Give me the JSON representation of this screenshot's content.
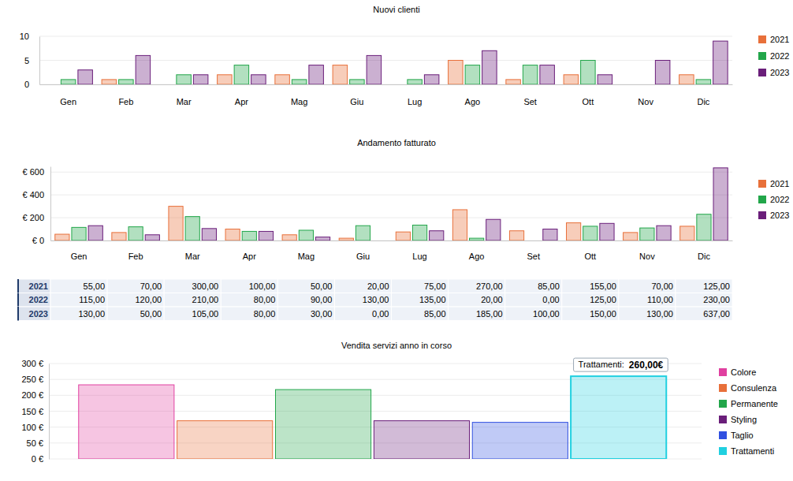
{
  "chart_data": [
    {
      "type": "bar",
      "title": "Nuovi clienti",
      "categories": [
        "Gen",
        "Feb",
        "Mar",
        "Apr",
        "Mag",
        "Giu",
        "Lug",
        "Ago",
        "Set",
        "Ott",
        "Nov",
        "Dic"
      ],
      "series": [
        {
          "name": "2021",
          "color": "#e8703a",
          "values": [
            0,
            1,
            0,
            2,
            2,
            4,
            0,
            5,
            1,
            2,
            0,
            2
          ]
        },
        {
          "name": "2022",
          "color": "#22a64a",
          "values": [
            1,
            1,
            2,
            4,
            1,
            1,
            1,
            4,
            4,
            5,
            0,
            1
          ]
        },
        {
          "name": "2023",
          "color": "#6a1e7a",
          "values": [
            3,
            6,
            2,
            2,
            4,
            6,
            2,
            7,
            4,
            2,
            5,
            9
          ]
        }
      ],
      "ylim": [
        0,
        10
      ],
      "yticks": [
        0,
        5,
        10
      ],
      "grid": true,
      "legend": "right"
    },
    {
      "type": "bar",
      "title": "Andamento fatturato",
      "categories": [
        "Gen",
        "Feb",
        "Mar",
        "Apr",
        "Mag",
        "Giu",
        "Lug",
        "Ago",
        "Set",
        "Ott",
        "Nov",
        "Dic"
      ],
      "series": [
        {
          "name": "2021",
          "color": "#e8703a",
          "values": [
            55,
            70,
            300,
            100,
            50,
            20,
            75,
            270,
            85,
            155,
            70,
            125
          ],
          "value_labels": [
            "55,00",
            "70,00",
            "300,00",
            "100,00",
            "50,00",
            "20,00",
            "75,00",
            "270,00",
            "85,00",
            "155,00",
            "70,00",
            "125,00"
          ]
        },
        {
          "name": "2022",
          "color": "#22a64a",
          "values": [
            115,
            120,
            210,
            80,
            90,
            130,
            135,
            20,
            0,
            125,
            110,
            230
          ],
          "value_labels": [
            "115,00",
            "120,00",
            "210,00",
            "80,00",
            "90,00",
            "130,00",
            "135,00",
            "20,00",
            "0,00",
            "125,00",
            "110,00",
            "230,00"
          ]
        },
        {
          "name": "2023",
          "color": "#6a1e7a",
          "values": [
            130,
            50,
            105,
            80,
            30,
            0,
            85,
            185,
            100,
            150,
            130,
            637
          ],
          "value_labels": [
            "130,00",
            "50,00",
            "105,00",
            "80,00",
            "30,00",
            "0,00",
            "85,00",
            "185,00",
            "100,00",
            "150,00",
            "130,00",
            "637,00"
          ]
        }
      ],
      "ylim": [
        0,
        650
      ],
      "yticks": [
        {
          "value": 0,
          "label": "€ 0"
        },
        {
          "value": 200,
          "label": "€ 200"
        },
        {
          "value": 400,
          "label": "€ 400"
        },
        {
          "value": 600,
          "label": "€ 600"
        }
      ],
      "grid": true,
      "legend": "right"
    },
    {
      "type": "bar",
      "title": "Vendita servizi anno in corso",
      "categories": [
        "Colore",
        "Consulenza",
        "Permanente",
        "Styling",
        "Taglio",
        "Trattamenti"
      ],
      "values": [
        233,
        120,
        218,
        120,
        115,
        260
      ],
      "colors": [
        "#e040a0",
        "#e8703a",
        "#22a64a",
        "#6a1e7a",
        "#3050e0",
        "#20d0e0"
      ],
      "ylim": [
        0,
        300
      ],
      "yticks": [
        {
          "value": 0,
          "label": "0 €"
        },
        {
          "value": 50,
          "label": "50 €"
        },
        {
          "value": 100,
          "label": "100 €"
        },
        {
          "value": 150,
          "label": "150 €"
        },
        {
          "value": 200,
          "label": "200 €"
        },
        {
          "value": 250,
          "label": "250 €"
        },
        {
          "value": 300,
          "label": "300 €"
        }
      ],
      "grid": true,
      "legend": "right",
      "tick_labels": "y",
      "annotations": [
        "Trattamenti:",
        "260,00€"
      ]
    }
  ]
}
